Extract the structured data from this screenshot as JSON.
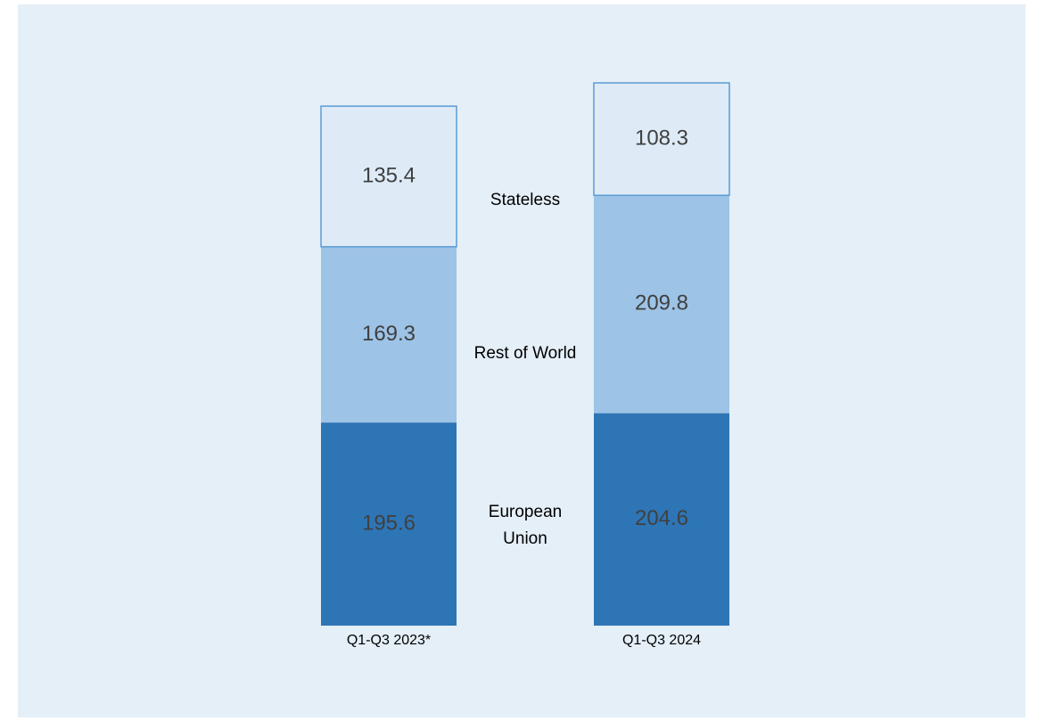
{
  "chart_data": {
    "type": "stacked_bar",
    "categories": [
      "Q1-Q3 2023*",
      "Q1-Q3 2024"
    ],
    "series": [
      {
        "name": "European Union",
        "color": "#2e75b6",
        "values": [
          195.6,
          204.6
        ]
      },
      {
        "name": "Rest of World",
        "color": "#9dc3e6",
        "values": [
          169.3,
          209.8
        ]
      },
      {
        "name": "Stateless",
        "color": "#deebf7",
        "values": [
          135.4,
          108.3
        ]
      }
    ]
  }
}
